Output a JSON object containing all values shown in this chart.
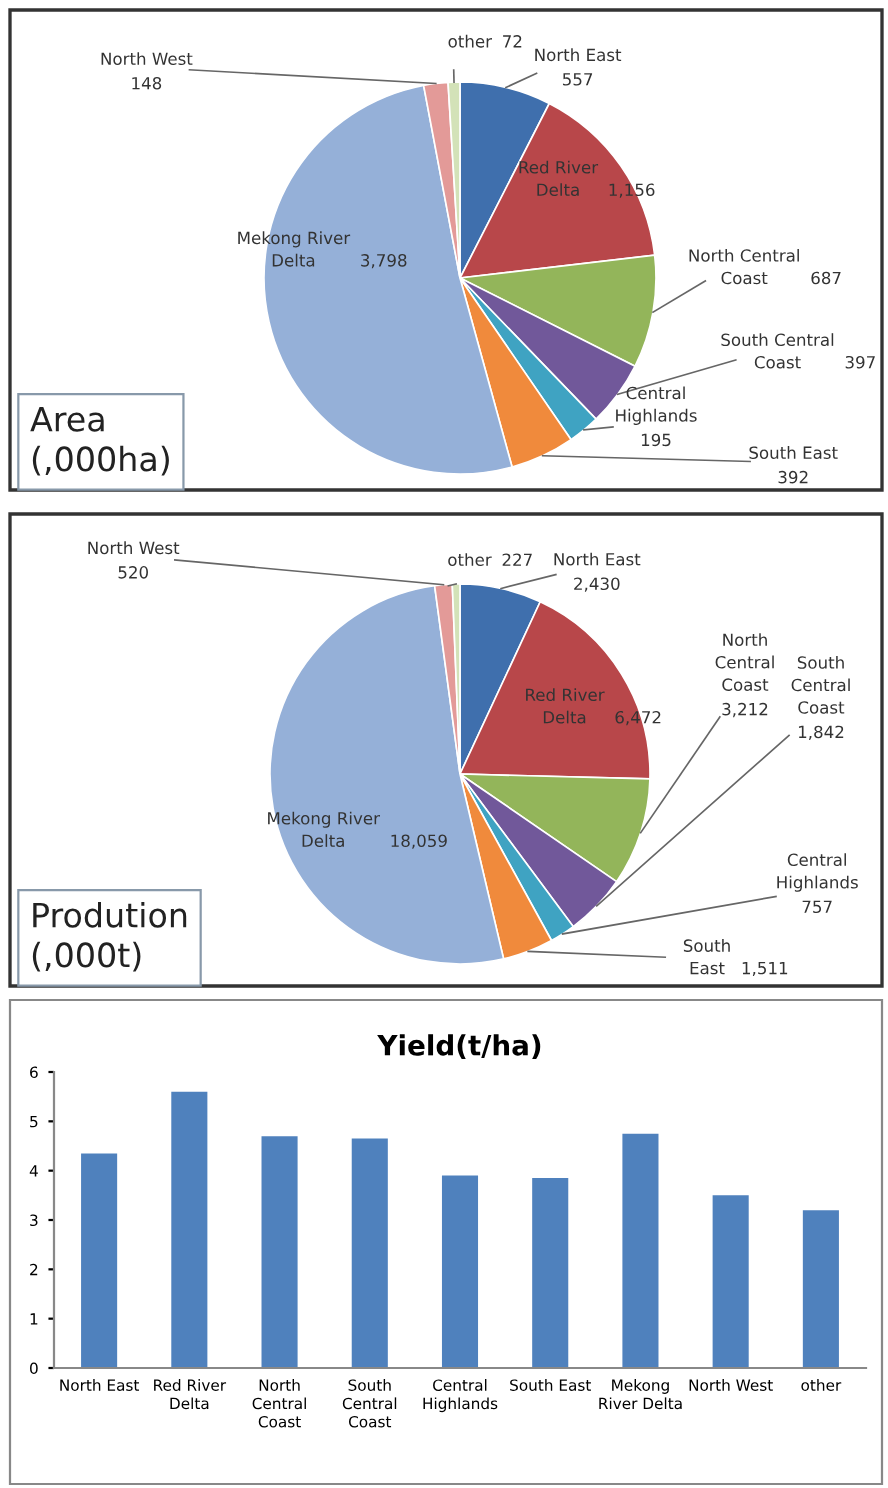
{
  "chart_data": [
    {
      "type": "pie",
      "title": "Area (,000ha)",
      "categories": [
        "North East",
        "Red River Delta",
        "North Central Coast",
        "South Central Coast",
        "Central Highlands",
        "South East",
        "Mekong River Delta",
        "North West",
        "other"
      ],
      "values": [
        557,
        1156,
        687,
        397,
        195,
        392,
        3798,
        148,
        72
      ],
      "value_labels": [
        "557",
        "1,156",
        "687",
        "397",
        "195",
        "392",
        "3,798",
        "148",
        "72"
      ],
      "colors": [
        "#3f6fad",
        "#b8474a",
        "#93b55a",
        "#71589a",
        "#3fa3c2",
        "#f08a3c",
        "#95b0d8",
        "#e39a98",
        "#d3e2b8"
      ]
    },
    {
      "type": "pie",
      "title": "Prodution (,000t)",
      "categories": [
        "North East",
        "Red River Delta",
        "North Central Coast",
        "South Central Coast",
        "Central Highlands",
        "South East",
        "Mekong River Delta",
        "North West",
        "other"
      ],
      "values": [
        2430,
        6472,
        3212,
        1842,
        757,
        1511,
        18059,
        520,
        227
      ],
      "value_labels": [
        "2,430",
        "6,472",
        "3,212",
        "1,842",
        "757",
        "1,511",
        "18,059",
        "520",
        "227"
      ],
      "colors": [
        "#3f6fad",
        "#b8474a",
        "#93b55a",
        "#71589a",
        "#3fa3c2",
        "#f08a3c",
        "#95b0d8",
        "#e39a98",
        "#d3e2b8"
      ]
    },
    {
      "type": "bar",
      "title": "Yield(t/ha)",
      "categories": [
        "North East",
        "Red River\nDelta",
        "North\nCentral\nCoast",
        "South\nCentral\nCoast",
        "Central\nHighlands",
        "South East",
        "Mekong\nRiver Delta",
        "North West",
        "other"
      ],
      "values": [
        4.35,
        5.6,
        4.7,
        4.65,
        3.9,
        3.85,
        4.75,
        3.5,
        3.2
      ],
      "color": "#4f81bd",
      "ylim": [
        0,
        6
      ],
      "yticks": [
        0,
        1,
        2,
        3,
        4,
        5,
        6
      ],
      "grid": false,
      "legend": false
    }
  ]
}
